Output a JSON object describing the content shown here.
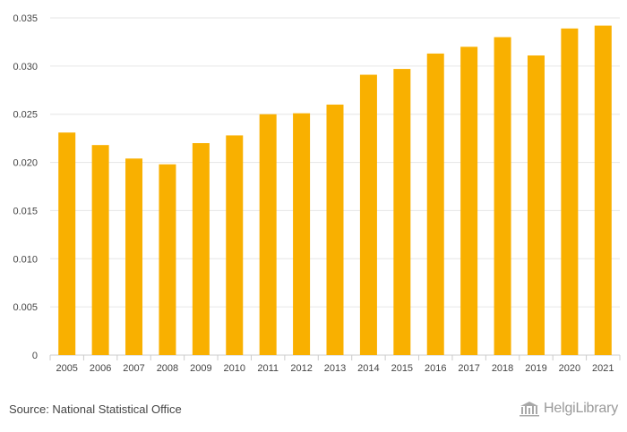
{
  "chart_data": {
    "type": "bar",
    "categories": [
      "2005",
      "2006",
      "2007",
      "2008",
      "2009",
      "2010",
      "2011",
      "2012",
      "2013",
      "2014",
      "2015",
      "2016",
      "2017",
      "2018",
      "2019",
      "2020",
      "2021"
    ],
    "values": [
      0.0231,
      0.0218,
      0.0204,
      0.0198,
      0.022,
      0.0228,
      0.025,
      0.0251,
      0.026,
      0.0291,
      0.0297,
      0.0313,
      0.032,
      0.033,
      0.0311,
      0.0339,
      0.0342
    ],
    "ylim": [
      0,
      0.035
    ],
    "yticks": [
      "0",
      "0.005",
      "0.010",
      "0.015",
      "0.020",
      "0.025",
      "0.030",
      "0.035"
    ],
    "grid": true,
    "bar_color": "#F9B000"
  },
  "footer": {
    "source": "Source: National Statistical Office",
    "logo_text": "HelgiLibrary"
  }
}
